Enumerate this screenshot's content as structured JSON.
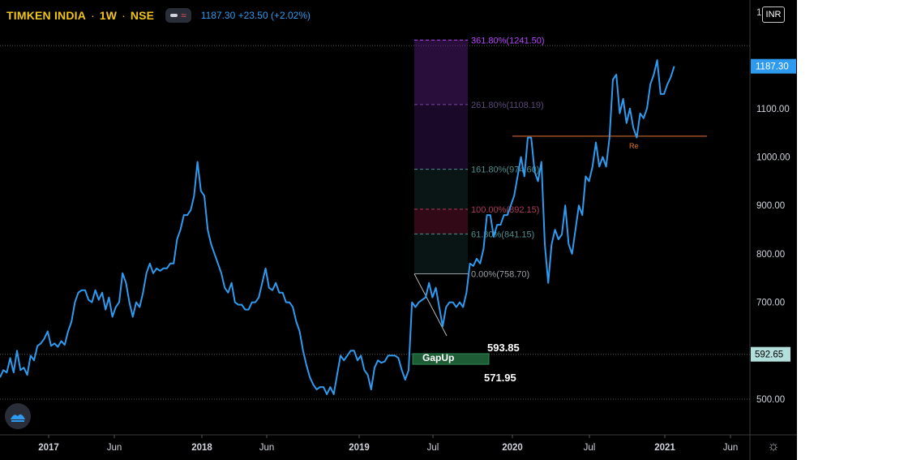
{
  "header": {
    "symbol": "TIMKEN INDIA",
    "sep1": "·",
    "interval": "1W",
    "sep2": "·",
    "exchange": "NSE",
    "price_text": "1187.30  +23.50 (+2.02%)"
  },
  "currency": "INR",
  "colors": {
    "series": "#2f9bf0",
    "resistance": "#e3732b",
    "gap_box": "#1e5c35",
    "grid_dotted": "#555555",
    "fib_purple": "#b844ff",
    "fib_teal": "#4f8f8f",
    "fib_red": "#b03a5b"
  },
  "chart_data": {
    "type": "line",
    "x_ticks": [
      "2017",
      "Jun",
      "2018",
      "Jun",
      "2019",
      "Jul",
      "2020",
      "Jul",
      "2021",
      "Jun"
    ],
    "y_ticks": [
      "500.00",
      "700.00",
      "800.00",
      "900.00",
      "1000.00",
      "1100.00"
    ],
    "y_top_partial": "1",
    "last_price_label": "1187.30",
    "marker_price_label": "592.65",
    "ylim": [
      430,
      1260
    ],
    "series": [
      {
        "values": [
          545,
          560,
          555,
          585,
          555,
          600,
          560,
          565,
          550,
          590,
          580,
          610,
          615,
          625,
          640,
          610,
          615,
          608,
          620,
          612,
          640,
          660,
          700,
          720,
          725,
          725,
          705,
          700,
          725,
          705,
          720,
          685,
          710,
          670,
          690,
          700,
          760,
          740,
          700,
          670,
          700,
          690,
          720,
          760,
          780,
          760,
          770,
          765,
          770,
          770,
          780,
          780,
          830,
          850,
          880,
          880,
          890,
          920,
          990,
          930,
          920,
          850,
          820,
          800,
          780,
          760,
          730,
          720,
          740,
          700,
          695,
          695,
          685,
          685,
          700,
          700,
          710,
          740,
          770,
          730,
          725,
          740,
          720,
          720,
          700,
          700,
          690,
          660,
          640,
          600,
          570,
          545,
          530,
          520,
          525,
          525,
          510,
          525,
          510,
          550,
          590,
          580,
          590,
          600,
          600,
          580,
          590,
          560,
          550,
          520,
          565,
          580,
          575,
          578,
          590,
          590,
          590,
          585,
          560,
          540,
          560,
          700,
          690,
          700,
          705,
          710,
          740,
          710,
          730,
          690,
          650,
          690,
          700,
          700,
          690,
          700,
          690,
          720,
          780,
          775,
          790,
          780,
          810,
          880,
          880,
          835,
          860,
          860,
          880,
          880,
          900,
          920,
          960,
          1000,
          960,
          1040,
          1040,
          970,
          950,
          990,
          820,
          740,
          820,
          850,
          830,
          840,
          900,
          820,
          800,
          850,
          900,
          880,
          960,
          950,
          980,
          1030,
          980,
          1000,
          980,
          1040,
          1160,
          1170,
          1090,
          1120,
          1070,
          1100,
          1060,
          1040,
          1090,
          1080,
          1100,
          1150,
          1170,
          1200,
          1130,
          1130,
          1150,
          1165,
          1187.3
        ]
      }
    ],
    "annotations": {
      "gap": {
        "label": "GapUp",
        "high": "593.85",
        "low": "571.95",
        "high_value": 593.85,
        "low_value": 571.95
      },
      "resistance": {
        "label": "Re",
        "value": 1043
      },
      "fib_levels": [
        {
          "label": "361.80%(1241.50)",
          "value": 1241.5
        },
        {
          "label": "261.80%(1108.19)",
          "value": 1108.19
        },
        {
          "label": "161.80%(974.60)",
          "value": 974.6
        },
        {
          "label": "100.00%(892.15)",
          "value": 892.15
        },
        {
          "label": "61.80%(841.15)",
          "value": 841.15
        },
        {
          "label": "0.00%(758.70)",
          "value": 758.7
        }
      ],
      "dotted_levels": [
        1230,
        592.65,
        500
      ]
    }
  }
}
